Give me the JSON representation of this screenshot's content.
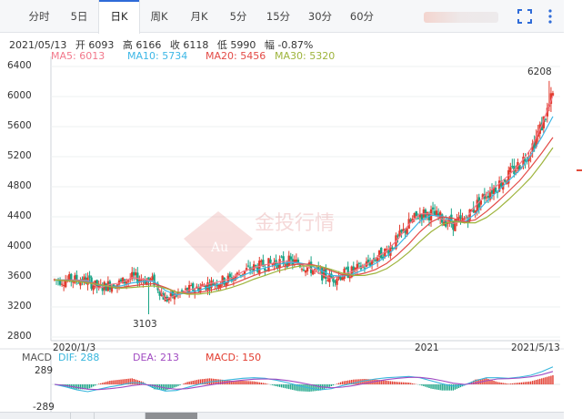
{
  "toolbar": {
    "tabs": [
      "分时",
      "5日",
      "日K",
      "周K",
      "月K",
      "5分",
      "15分",
      "30分",
      "60分"
    ],
    "active_tab": "日K"
  },
  "info": {
    "date": "2021/05/13",
    "open": "开 6093",
    "high": "高 6166",
    "close": "收 6118",
    "low": "低 5990",
    "change": "幅 -0.87%"
  },
  "ma": {
    "ma5": "MA5: 6013",
    "ma10": "MA10: 5734",
    "ma20": "MA20: 5456",
    "ma30": "MA30: 5320"
  },
  "macd_legend": {
    "title": "MACD",
    "dif": "DIF: 288",
    "dea": "DEA: 213",
    "macd": "MACD: 150"
  },
  "colors": {
    "up": "#e23c2f",
    "down": "#1aa486",
    "ma5": "#f2788b",
    "ma10": "#3cb7e6",
    "ma20": "#e34a46",
    "ma30": "#9eb43c",
    "dif": "#37b6dd",
    "dea": "#a14bc2",
    "active_tab_bar": "#2f6bd8"
  },
  "watermark": "金投行情",
  "chart_data": {
    "type": "candlestick",
    "y_ticks": [
      6400,
      6000,
      5600,
      5200,
      4800,
      4400,
      4000,
      3600,
      3200,
      2800
    ],
    "ylim": [
      2800,
      6400
    ],
    "x_tick_labels": [
      "2020/1/3",
      "2021",
      "2021/5/13"
    ],
    "annotations": [
      {
        "text": "6208",
        "value": 6208,
        "note": "high"
      },
      {
        "text": "3103",
        "value": 3103,
        "note": "low"
      }
    ],
    "series": [
      {
        "name": "MA5",
        "values": [
          3560,
          3560,
          3560,
          3550,
          3450,
          3500,
          3520,
          3590,
          3570,
          3540,
          3300,
          3360,
          3420,
          3460,
          3510,
          3540,
          3580,
          3670,
          3720,
          3760,
          3790,
          3810,
          3780,
          3720,
          3640,
          3580,
          3630,
          3680,
          3750,
          3850,
          3950,
          4100,
          4300,
          4440,
          4440,
          4370,
          4310,
          4350,
          4540,
          4710,
          4820,
          4950,
          5100,
          5300,
          5620,
          6013
        ]
      },
      {
        "name": "MA10",
        "values": [
          3560,
          3560,
          3550,
          3540,
          3490,
          3470,
          3480,
          3520,
          3540,
          3540,
          3420,
          3360,
          3390,
          3420,
          3470,
          3510,
          3550,
          3620,
          3680,
          3720,
          3760,
          3790,
          3790,
          3760,
          3690,
          3620,
          3610,
          3640,
          3700,
          3780,
          3880,
          4020,
          4180,
          4340,
          4420,
          4410,
          4340,
          4330,
          4440,
          4600,
          4740,
          4880,
          5020,
          5220,
          5460,
          5734
        ]
      },
      {
        "name": "MA20",
        "values": [
          3560,
          3555,
          3545,
          3530,
          3500,
          3470,
          3460,
          3480,
          3500,
          3510,
          3460,
          3400,
          3380,
          3390,
          3420,
          3460,
          3500,
          3560,
          3620,
          3670,
          3710,
          3750,
          3770,
          3770,
          3740,
          3680,
          3630,
          3620,
          3650,
          3700,
          3780,
          3900,
          4040,
          4200,
          4330,
          4400,
          4380,
          4330,
          4360,
          4470,
          4600,
          4740,
          4880,
          5060,
          5250,
          5456
        ]
      },
      {
        "name": "MA30",
        "values": [
          3560,
          3550,
          3540,
          3520,
          3500,
          3470,
          3450,
          3460,
          3470,
          3480,
          3450,
          3400,
          3370,
          3370,
          3390,
          3420,
          3460,
          3510,
          3570,
          3620,
          3670,
          3710,
          3740,
          3750,
          3740,
          3700,
          3650,
          3620,
          3620,
          3650,
          3710,
          3810,
          3930,
          4070,
          4200,
          4300,
          4340,
          4320,
          4320,
          4390,
          4500,
          4630,
          4770,
          4920,
          5110,
          5320
        ]
      }
    ],
    "macd_y_ticks": [
      289,
      -289
    ],
    "macd_ylim": [
      -360,
      360
    ],
    "macd_series": [
      {
        "name": "DIF",
        "values": [
          0,
          -40,
          -90,
          -120,
          -80,
          -40,
          -10,
          30,
          20,
          -60,
          -110,
          -100,
          -50,
          0,
          40,
          60,
          80,
          100,
          110,
          100,
          70,
          30,
          -20,
          -60,
          -90,
          -70,
          -20,
          20,
          60,
          90,
          110,
          120,
          130,
          110,
          60,
          10,
          -30,
          -10,
          60,
          110,
          110,
          100,
          120,
          150,
          210,
          288
        ]
      },
      {
        "name": "DEA",
        "values": [
          0,
          -20,
          -50,
          -80,
          -85,
          -70,
          -50,
          -20,
          0,
          -20,
          -60,
          -80,
          -70,
          -40,
          -10,
          20,
          50,
          70,
          85,
          90,
          85,
          65,
          35,
          0,
          -40,
          -55,
          -45,
          -20,
          15,
          50,
          80,
          100,
          115,
          115,
          95,
          60,
          20,
          0,
          20,
          60,
          90,
          95,
          105,
          125,
          160,
          213
        ]
      }
    ]
  }
}
